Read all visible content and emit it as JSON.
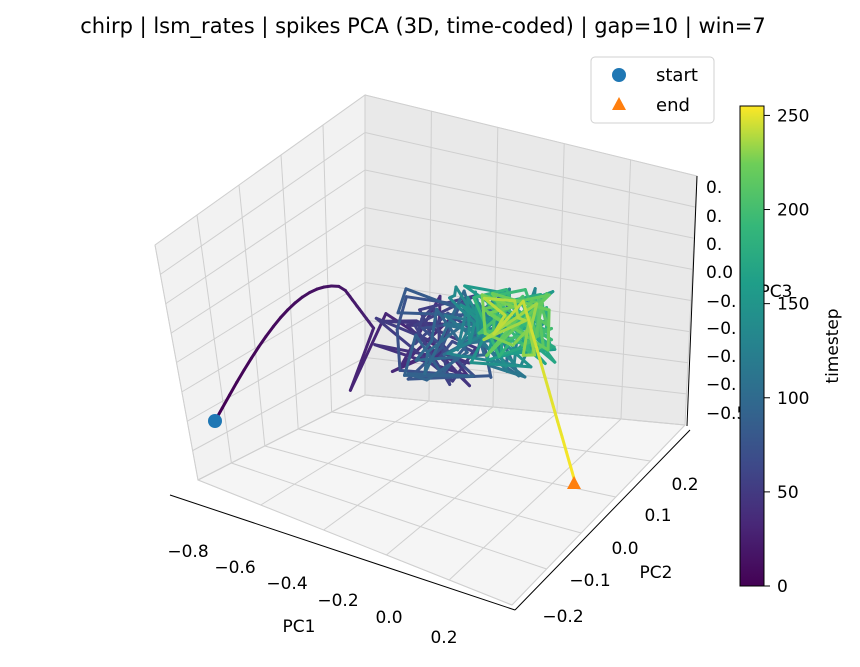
{
  "chart_data": {
    "type": "line",
    "projection": "3d",
    "title": "chirp | lsm_rates | spikes PCA (3D, time-coded) | gap=10 | win=7",
    "xlabel": "PC1",
    "ylabel": "PC2",
    "zlabel": "PC3",
    "xlim": [
      -0.9,
      0.3
    ],
    "ylim": [
      -0.25,
      0.28
    ],
    "zlim": [
      -0.55,
      0.35
    ],
    "x_ticks": [
      "−0.8",
      "−0.6",
      "−0.4",
      "−0.2",
      "0.0",
      "0.2"
    ],
    "y_ticks": [
      "−0.2",
      "−0.1",
      "0.0",
      "0.1",
      "0.2"
    ],
    "z_ticks": [
      "0.",
      "0.",
      "0.",
      "0.0",
      "−0.",
      "−0.",
      "−0.",
      "−0.",
      "−0.5"
    ],
    "grid": true,
    "legend": {
      "placement": "top-right",
      "entries": [
        {
          "label": "start",
          "color": "#1f77b4",
          "marker": "circle"
        },
        {
          "label": "end",
          "color": "#ff7f0e",
          "marker": "triangle"
        }
      ]
    },
    "colorbar": {
      "label": "timestep",
      "range": [
        0,
        255
      ],
      "ticks": [
        "0",
        "50",
        "100",
        "150",
        "200",
        "250"
      ],
      "colormap": "viridis"
    },
    "series": [
      {
        "timestep_range": [
          0,
          255
        ],
        "start": {
          "x": -0.82,
          "y": -0.05,
          "z": -0.35
        },
        "end": {
          "x": 0.22,
          "y": 0.08,
          "z": -0.45
        }
      }
    ]
  }
}
